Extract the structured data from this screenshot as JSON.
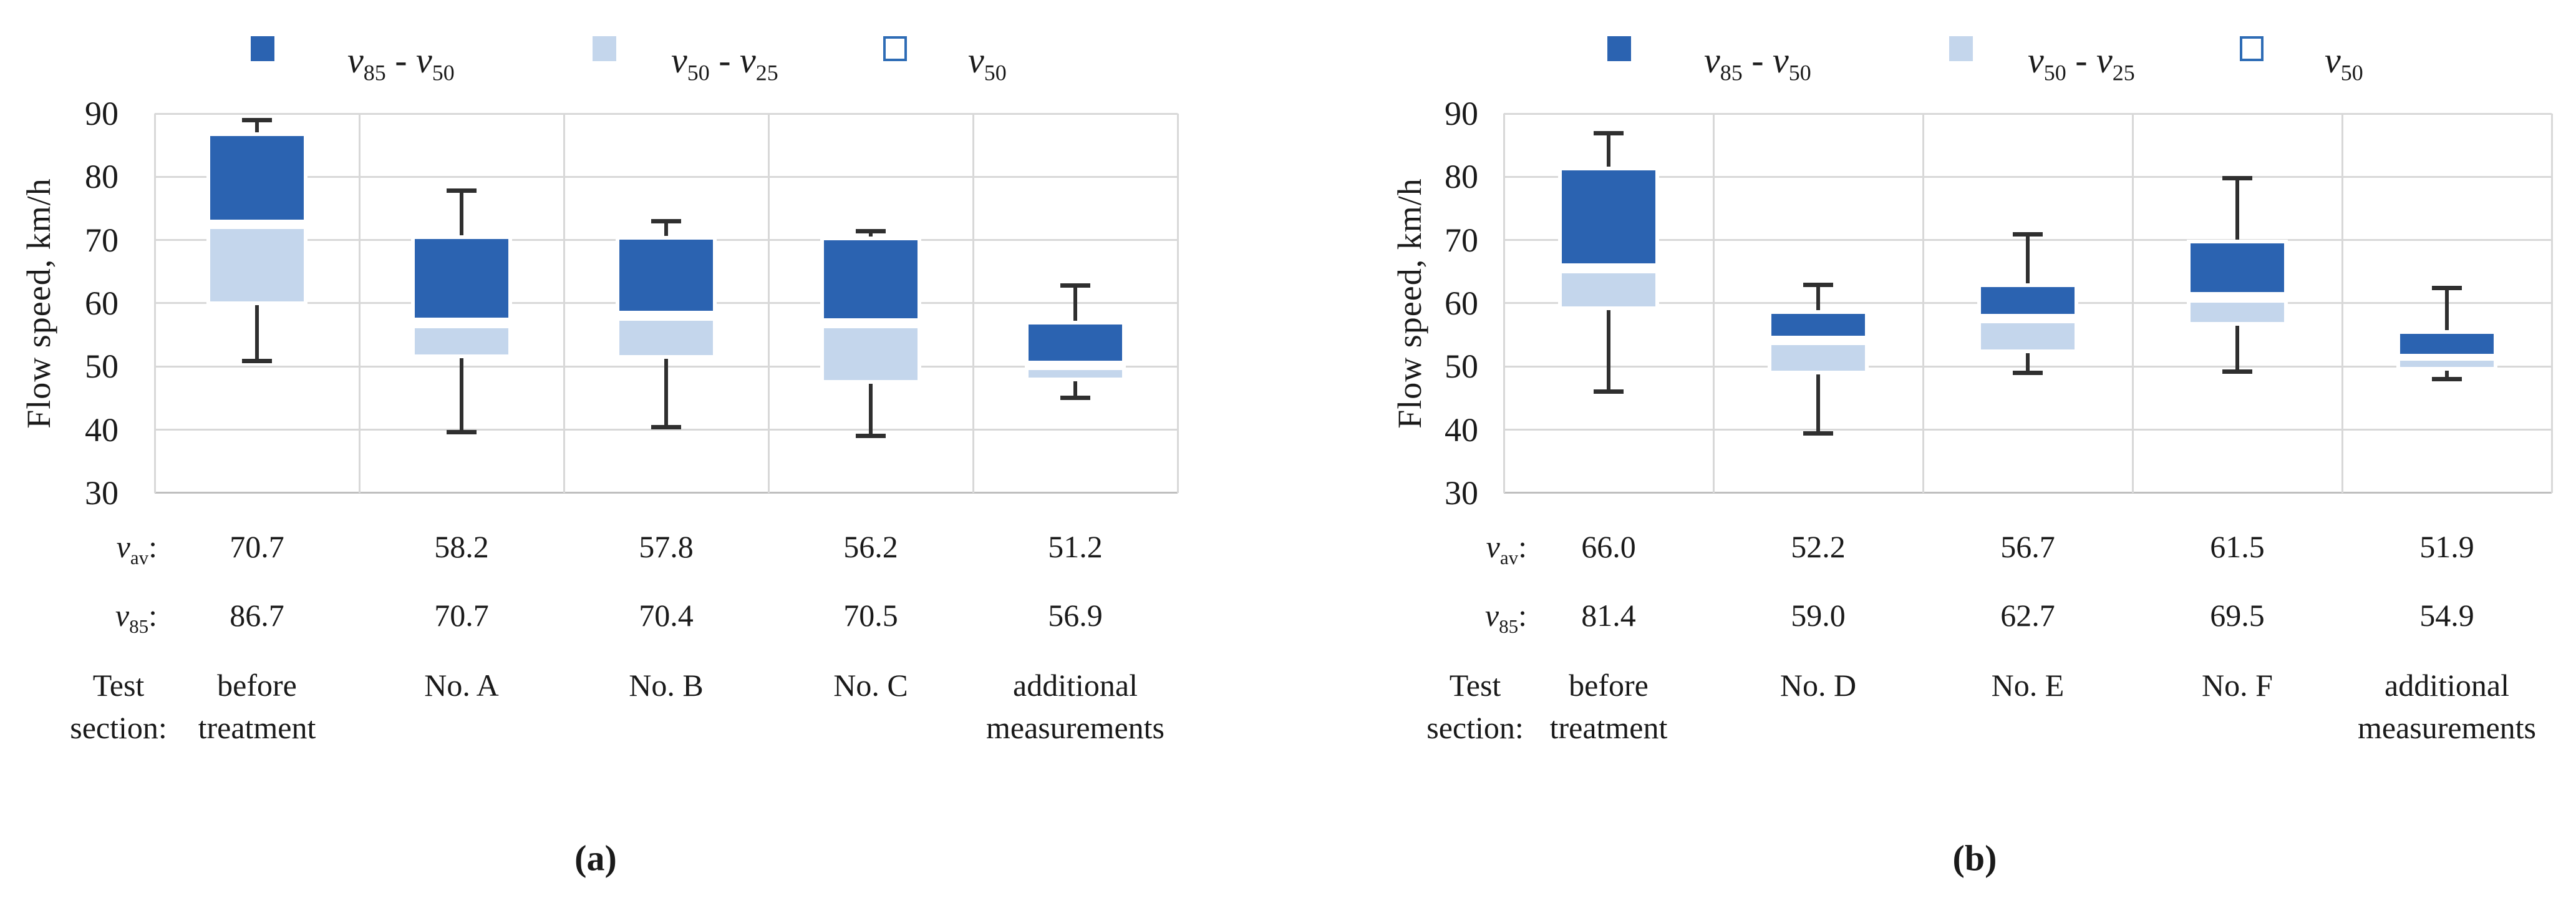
{
  "colors": {
    "dark_blue": "#2B63B1",
    "light_blue": "#C4D6EC",
    "v50_marker": "#FFFFFF",
    "v50_outline": "#2E6CB5",
    "gridline": "#D8D8D8",
    "axis_line": "#BFBFBF",
    "whisker": "#2F2F2F",
    "text": "#1A1A1A",
    "background": "#FFFFFF"
  },
  "chart_data": [
    {
      "type": "boxplot",
      "panel": "a",
      "caption": "(a)",
      "ylabel": "Flow speed, km/h",
      "ylim": [
        30,
        90
      ],
      "yticks": [
        90,
        80,
        70,
        60,
        50,
        40,
        30
      ],
      "grid": true,
      "legend_position": "top",
      "legend": [
        {
          "swatch": "dark-blue",
          "label": "v_{85} - v_{50}"
        },
        {
          "swatch": "light-blue",
          "label": "v_{50} - v_{25}"
        },
        {
          "swatch": "white-outline",
          "label": "v_{50}"
        }
      ],
      "row_headers": {
        "average": "v_{av}:",
        "percentile85": "v_{85}:",
        "section": [
          "Test",
          "section:"
        ]
      },
      "columns": [
        {
          "section": [
            "before",
            "treatment"
          ],
          "v_av": "70.7",
          "v85": "86.7",
          "box": {
            "min": 50.8,
            "q25": 60.3,
            "v50_band": [
              71.7,
              73.2
            ],
            "v85": 86.4,
            "max": 89.0
          }
        },
        {
          "section": [
            "No. A"
          ],
          "v_av": "58.2",
          "v85": "70.7",
          "box": {
            "min": 39.6,
            "q25": 51.9,
            "v50_band": [
              56.1,
              57.7
            ],
            "v85": 70.2,
            "max": 77.9
          }
        },
        {
          "section": [
            "No. B"
          ],
          "v_av": "57.8",
          "v85": "70.4",
          "box": {
            "min": 40.4,
            "q25": 51.8,
            "v50_band": [
              57.2,
              58.8
            ],
            "v85": 70.1,
            "max": 73.0
          }
        },
        {
          "section": [
            "No. C"
          ],
          "v_av": "56.2",
          "v85": "70.5",
          "box": {
            "min": 39.0,
            "q25": 47.9,
            "v50_band": [
              56.1,
              57.6
            ],
            "v85": 70.0,
            "max": 71.4
          }
        },
        {
          "section": [
            "additional",
            "measurements"
          ],
          "v_av": "51.2",
          "v85": "56.9",
          "box": {
            "min": 45.0,
            "q25": 48.3,
            "v50_band": [
              49.4,
              50.9
            ],
            "v85": 56.6,
            "max": 62.9
          }
        }
      ]
    },
    {
      "type": "boxplot",
      "panel": "b",
      "caption": "(b)",
      "ylabel": "Flow speed, km/h",
      "ylim": [
        30,
        90
      ],
      "yticks": [
        90,
        80,
        70,
        60,
        50,
        40,
        30
      ],
      "grid": true,
      "legend_position": "top",
      "legend": [
        {
          "swatch": "dark-blue",
          "label": "v_{85} - v_{50}"
        },
        {
          "swatch": "light-blue",
          "label": "v_{50} - v_{25}"
        },
        {
          "swatch": "white-outline",
          "label": "v_{50}"
        }
      ],
      "row_headers": {
        "average": "v_{av}:",
        "percentile85": "v_{85}:",
        "section": [
          "Test",
          "section:"
        ]
      },
      "columns": [
        {
          "section": [
            "before",
            "treatment"
          ],
          "v_av": "66.0",
          "v85": "81.4",
          "box": {
            "min": 46.0,
            "q25": 59.5,
            "v50_band": [
              64.7,
              66.3
            ],
            "v85": 81.0,
            "max": 86.9
          }
        },
        {
          "section": [
            "No. D"
          ],
          "v_av": "52.2",
          "v85": "59.0",
          "box": {
            "min": 39.4,
            "q25": 49.3,
            "v50_band": [
              53.4,
              54.9
            ],
            "v85": 58.3,
            "max": 63.0
          }
        },
        {
          "section": [
            "No. E"
          ],
          "v_av": "56.7",
          "v85": "62.7",
          "box": {
            "min": 48.9,
            "q25": 52.7,
            "v50_band": [
              56.8,
              58.3
            ],
            "v85": 62.6,
            "max": 71.0
          }
        },
        {
          "section": [
            "No. F"
          ],
          "v_av": "61.5",
          "v85": "69.5",
          "box": {
            "min": 49.1,
            "q25": 57.0,
            "v50_band": [
              60.1,
              61.8
            ],
            "v85": 69.5,
            "max": 79.8
          }
        },
        {
          "section": [
            "additional",
            "measurements"
          ],
          "v_av": "51.9",
          "v85": "54.9",
          "box": {
            "min": 48.0,
            "q25": 49.9,
            "v50_band": [
              50.9,
              52.0
            ],
            "v85": 55.2,
            "max": 62.5
          }
        }
      ]
    }
  ]
}
